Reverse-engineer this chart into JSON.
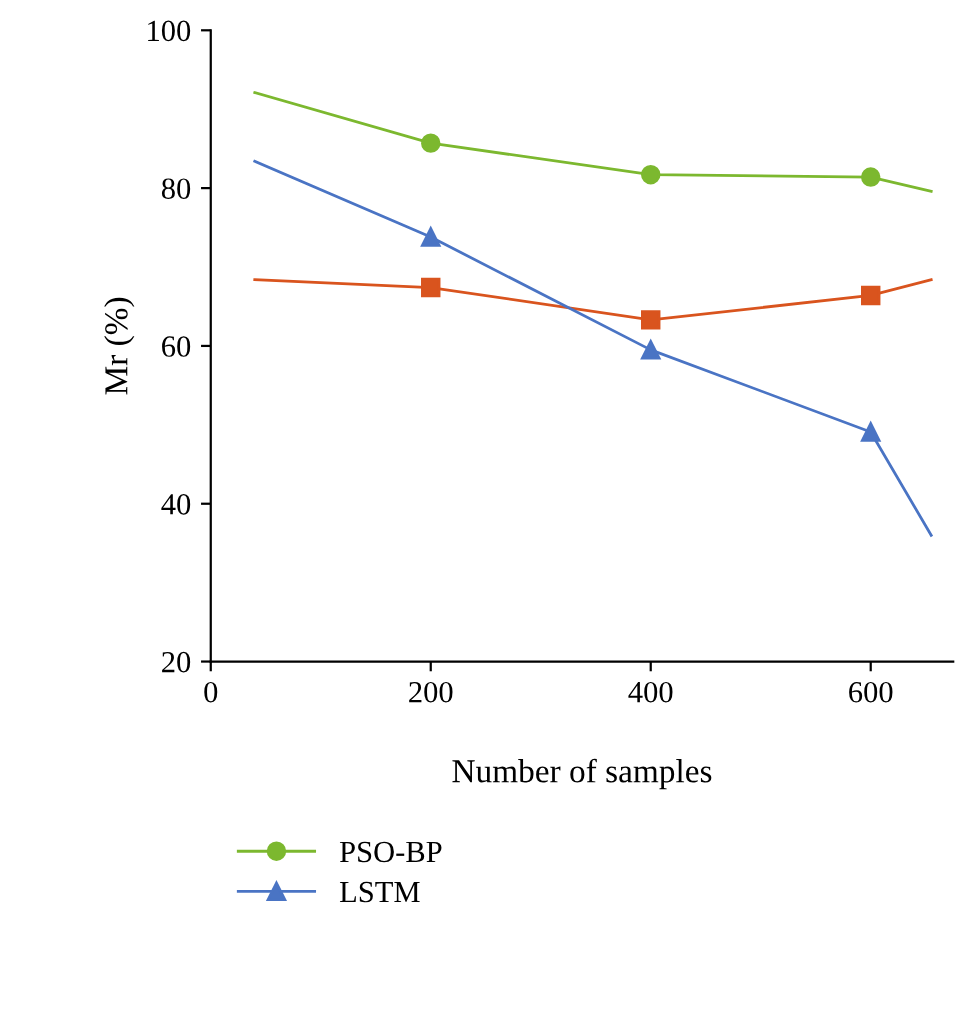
{
  "chart_data": {
    "type": "line",
    "xlabel": "Number of samples",
    "ylabel": "Mr (%)",
    "xlim": [
      0,
      675
    ],
    "ylim": [
      20,
      100
    ],
    "xticks": [
      0,
      200,
      400,
      600
    ],
    "yticks": [
      20,
      40,
      60,
      80,
      100
    ],
    "grid": false,
    "legend": "bottom",
    "line_style": "solid",
    "series": [
      {
        "name": "PSO-BP",
        "color": "#7cb82f",
        "marker": "circle",
        "x": [
          40,
          200,
          400,
          600,
          655
        ],
        "values": [
          92.1,
          85.7,
          81.7,
          81.4,
          79.6
        ]
      },
      {
        "color": "#d9541e",
        "marker": "square",
        "x": [
          40,
          200,
          400,
          600,
          655
        ],
        "values": [
          68.4,
          67.4,
          63.3,
          66.4,
          68.4
        ]
      },
      {
        "name": "LSTM",
        "color": "#4a74c4",
        "marker": "triangle",
        "x": [
          40,
          200,
          400,
          600,
          655
        ],
        "values": [
          83.4,
          73.8,
          59.5,
          49.1,
          36.0
        ]
      }
    ]
  }
}
